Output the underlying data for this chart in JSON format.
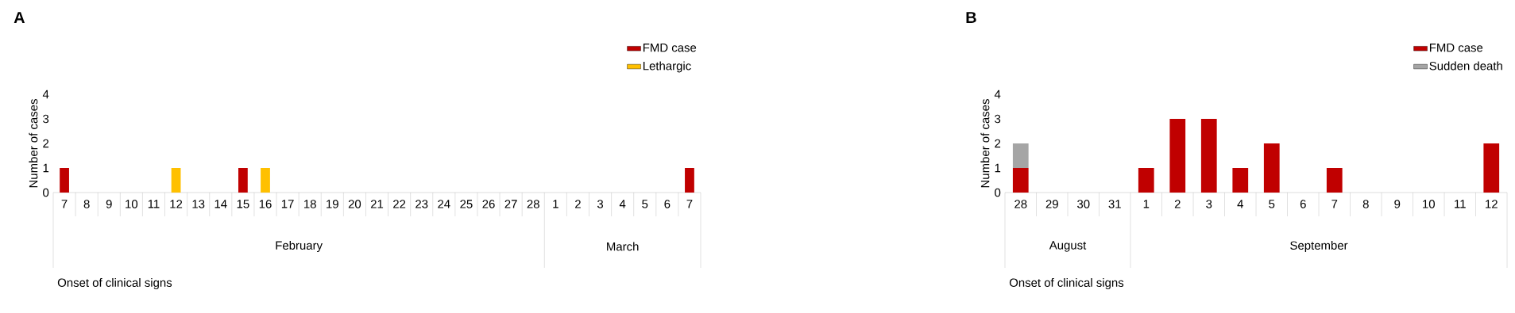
{
  "chart_data": [
    {
      "type": "bar",
      "title": "A",
      "xlabel": "Onset of clinical signs",
      "ylabel": "Number of cases",
      "stacked": true,
      "legend": "top right",
      "categories": [
        "7",
        "8",
        "9",
        "10",
        "11",
        "12",
        "13",
        "14",
        "15",
        "16",
        "17",
        "18",
        "19",
        "20",
        "21",
        "22",
        "23",
        "24",
        "25",
        "26",
        "27",
        "28",
        "1",
        "2",
        "3",
        "4",
        "5",
        "6",
        "7"
      ],
      "series": [
        {
          "name": "FMD case",
          "color": "#c00000",
          "values": [
            1,
            0,
            0,
            0,
            0,
            0,
            0,
            0,
            1,
            0,
            0,
            0,
            0,
            0,
            0,
            0,
            0,
            0,
            0,
            0,
            0,
            0,
            0,
            0,
            0,
            0,
            0,
            0,
            1
          ]
        },
        {
          "name": "Lethargic",
          "color": "#ffc000",
          "values": [
            0,
            0,
            0,
            0,
            0,
            1,
            0,
            0,
            0,
            1,
            0,
            0,
            0,
            0,
            0,
            0,
            0,
            0,
            0,
            0,
            0,
            0,
            0,
            0,
            0,
            0,
            0,
            0,
            0
          ]
        }
      ],
      "ylim": [
        0,
        4
      ],
      "yticks": [
        0,
        1,
        2,
        3,
        4
      ],
      "annotations": [
        "February",
        "March"
      ]
    },
    {
      "type": "bar",
      "title": "B",
      "xlabel": "Onset of clinical signs",
      "ylabel": "Number of cases",
      "stacked": true,
      "legend": "top right",
      "categories": [
        "28",
        "29",
        "30",
        "31",
        "1",
        "2",
        "3",
        "4",
        "5",
        "6",
        "7",
        "8",
        "9",
        "10",
        "11",
        "12"
      ],
      "series": [
        {
          "name": "FMD case",
          "color": "#c00000",
          "values": [
            1,
            0,
            0,
            0,
            1,
            3,
            3,
            1,
            2,
            0,
            1,
            0,
            0,
            0,
            0,
            2
          ]
        },
        {
          "name": "Sudden death",
          "color": "#a5a5a5",
          "values": [
            1,
            0,
            0,
            0,
            0,
            0,
            0,
            0,
            0,
            0,
            0,
            0,
            0,
            0,
            0,
            0
          ]
        }
      ],
      "ylim": [
        0,
        4
      ],
      "yticks": [
        0,
        1,
        2,
        3,
        4
      ],
      "annotations": [
        "August",
        "September"
      ]
    }
  ]
}
